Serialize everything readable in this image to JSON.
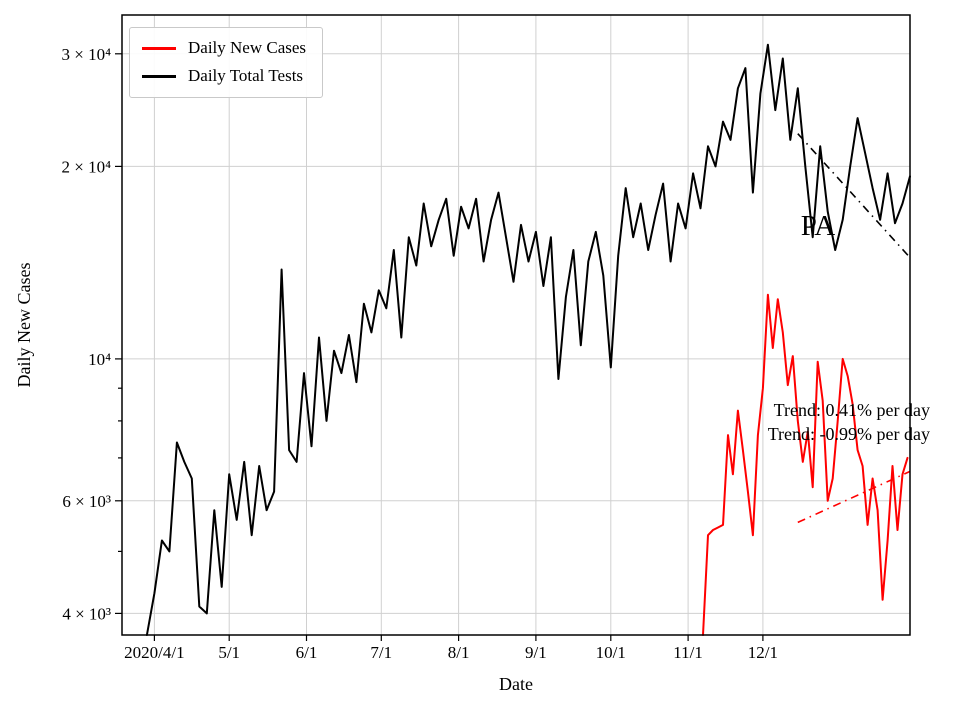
{
  "chart_data": {
    "type": "line",
    "title": "",
    "xlabel": "Date",
    "ylabel": "Daily New Cases",
    "yscale": "log",
    "ylim": [
      3700,
      34500
    ],
    "grid": true,
    "x_axis": {
      "domain_days": [
        -13,
        303
      ],
      "tick_days": [
        0,
        30,
        61,
        91,
        122,
        153,
        183,
        214,
        244
      ],
      "tick_labels": [
        "2020/4/1",
        "5/1",
        "6/1",
        "7/1",
        "8/1",
        "9/1",
        "10/1",
        "11/1",
        "12/1"
      ]
    },
    "y_axis": {
      "major_ticks": [
        4000,
        6000,
        10000,
        20000,
        30000
      ],
      "major_labels": [
        "4 × 10³",
        "6 × 10³",
        "10⁴",
        "2 × 10⁴",
        "3 × 10⁴"
      ],
      "minor_ticks": [
        5000,
        7000,
        8000,
        9000
      ]
    },
    "legend": {
      "position": "upper-left",
      "entries": [
        {
          "label": "Daily New Cases",
          "color": "#ff0000"
        },
        {
          "label": "Daily Total Tests",
          "color": "#000000"
        }
      ]
    },
    "annotations": [
      {
        "text": "PA"
      },
      {
        "text": "Trend: 0.41% per day"
      },
      {
        "text": "Trend: -0.99% per day"
      }
    ],
    "series": [
      {
        "name": "Daily New Cases",
        "color": "#ff0000",
        "x_start_day": 220,
        "x_step_days": 2,
        "values": [
          3700,
          5300,
          5400,
          5450,
          5500,
          7600,
          6600,
          8300,
          7200,
          6200,
          5300,
          7600,
          9000,
          12600,
          10400,
          12400,
          11000,
          9100,
          10100,
          8000,
          6900,
          7700,
          6300,
          9900,
          8600,
          6000,
          6500,
          8000,
          10000,
          9400,
          8500,
          7200,
          6800,
          5500,
          6500,
          5800,
          4200,
          5200,
          6800,
          5400,
          6600,
          7000
        ]
      },
      {
        "name": "Daily Total Tests",
        "color": "#000000",
        "x_start_day": -3,
        "x_step_days": 3,
        "values": [
          3700,
          4300,
          5200,
          5000,
          7400,
          6900,
          6500,
          4100,
          4000,
          5800,
          4400,
          6600,
          5600,
          6900,
          5300,
          6800,
          5800,
          6200,
          13800,
          7200,
          6900,
          9500,
          7300,
          10800,
          8000,
          10300,
          9500,
          10900,
          9200,
          12200,
          11000,
          12800,
          12000,
          14800,
          10800,
          15500,
          14000,
          17500,
          15000,
          16500,
          17800,
          14500,
          17300,
          16000,
          17800,
          14200,
          16500,
          18200,
          15500,
          13200,
          16200,
          14200,
          15800,
          13000,
          15500,
          9300,
          12500,
          14800,
          10500,
          14200,
          15800,
          13500,
          9700,
          14500,
          18500,
          15500,
          17500,
          14800,
          16800,
          18800,
          14200,
          17500,
          16000,
          19500,
          17200,
          21500,
          20000,
          23500,
          22000,
          26500,
          28500,
          18200,
          26000,
          31000,
          24500,
          29500,
          22000,
          26500,
          20000,
          15500,
          21500,
          17000,
          14800,
          16500,
          20000,
          23800,
          21000,
          18500,
          16500,
          19500,
          16300,
          17500,
          19300
        ]
      }
    ],
    "trend_lines": [
      {
        "name": "tests-trend",
        "color": "#000000",
        "style": "dashdot",
        "day0": 258,
        "v0": 22500,
        "day1": 303,
        "v1": 14400
      },
      {
        "name": "cases-trend",
        "color": "#ff0000",
        "style": "dashdot",
        "day0": 258,
        "v0": 5550,
        "day1": 303,
        "v1": 6670
      }
    ]
  }
}
